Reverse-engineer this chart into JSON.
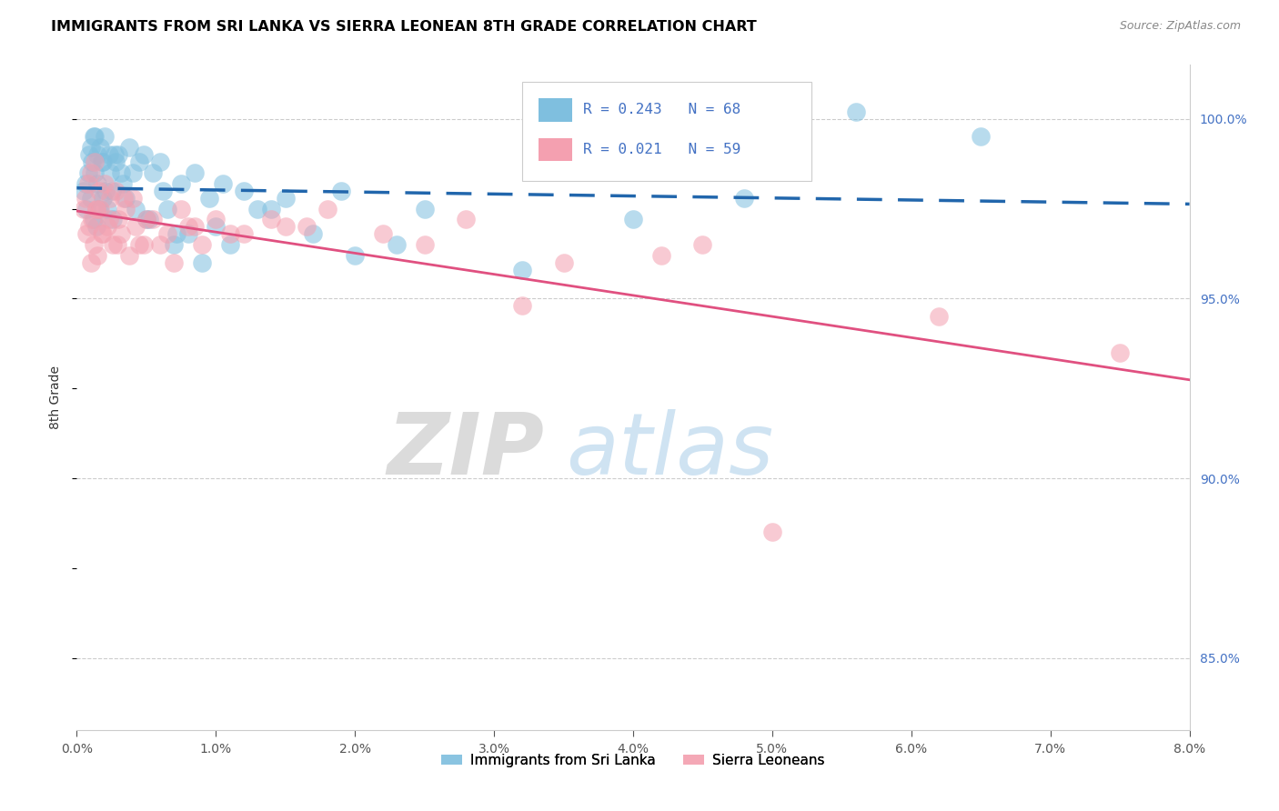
{
  "title": "IMMIGRANTS FROM SRI LANKA VS SIERRA LEONEAN 8TH GRADE CORRELATION CHART",
  "source": "Source: ZipAtlas.com",
  "ylabel": "8th Grade",
  "legend_label_1": "Immigrants from Sri Lanka",
  "legend_label_2": "Sierra Leoneans",
  "r1": 0.243,
  "n1": 68,
  "r2": 0.021,
  "n2": 59,
  "xlim": [
    0.0,
    8.0
  ],
  "ylim": [
    83.0,
    101.5
  ],
  "right_yticks": [
    85.0,
    90.0,
    95.0,
    100.0
  ],
  "color_blue": "#7fbfdf",
  "color_pink": "#f4a0b0",
  "color_blue_line": "#2166ac",
  "color_pink_line": "#e05080",
  "watermark_zip": "ZIP",
  "watermark_atlas": "atlas",
  "sri_lanka_x": [
    0.05,
    0.07,
    0.08,
    0.09,
    0.1,
    0.1,
    0.11,
    0.12,
    0.12,
    0.13,
    0.14,
    0.15,
    0.15,
    0.16,
    0.17,
    0.18,
    0.19,
    0.2,
    0.21,
    0.22,
    0.23,
    0.24,
    0.25,
    0.26,
    0.28,
    0.3,
    0.32,
    0.35,
    0.38,
    0.4,
    0.42,
    0.45,
    0.48,
    0.5,
    0.55,
    0.6,
    0.65,
    0.7,
    0.75,
    0.8,
    0.9,
    1.0,
    1.1,
    1.2,
    1.3,
    1.5,
    1.7,
    2.0,
    2.5,
    3.2,
    4.0,
    4.8,
    5.6,
    6.5,
    0.06,
    0.13,
    0.19,
    0.27,
    0.33,
    0.52,
    0.62,
    0.72,
    0.85,
    0.95,
    1.05,
    1.4,
    1.9,
    2.3
  ],
  "sri_lanka_y": [
    98.0,
    97.5,
    98.5,
    99.0,
    99.2,
    97.8,
    98.8,
    97.2,
    99.5,
    98.5,
    97.0,
    99.0,
    98.2,
    97.5,
    99.2,
    98.8,
    97.8,
    99.5,
    98.0,
    97.5,
    99.0,
    98.5,
    98.0,
    97.2,
    98.8,
    99.0,
    98.5,
    97.8,
    99.2,
    98.5,
    97.5,
    98.8,
    99.0,
    97.2,
    98.5,
    98.8,
    97.5,
    96.5,
    98.2,
    96.8,
    96.0,
    97.0,
    96.5,
    98.0,
    97.5,
    97.8,
    96.8,
    96.2,
    97.5,
    95.8,
    97.2,
    97.8,
    100.2,
    99.5,
    98.2,
    99.5,
    98.8,
    99.0,
    98.2,
    97.2,
    98.0,
    96.8,
    98.5,
    97.8,
    98.2,
    97.5,
    98.0,
    96.5
  ],
  "sierra_leone_x": [
    0.05,
    0.07,
    0.08,
    0.09,
    0.1,
    0.11,
    0.12,
    0.13,
    0.14,
    0.15,
    0.16,
    0.17,
    0.18,
    0.2,
    0.22,
    0.24,
    0.26,
    0.28,
    0.3,
    0.32,
    0.35,
    0.38,
    0.4,
    0.45,
    0.5,
    0.6,
    0.7,
    0.8,
    0.9,
    1.0,
    1.2,
    1.5,
    1.8,
    2.2,
    2.8,
    3.5,
    4.5,
    5.0,
    7.5,
    0.06,
    0.1,
    0.14,
    0.19,
    0.23,
    0.29,
    0.34,
    0.42,
    0.48,
    0.55,
    0.65,
    0.75,
    0.85,
    1.1,
    1.4,
    1.65,
    2.5,
    3.2,
    4.2,
    6.2
  ],
  "sierra_leone_y": [
    97.5,
    96.8,
    98.2,
    97.0,
    98.5,
    97.2,
    96.5,
    98.8,
    97.5,
    96.2,
    98.0,
    97.5,
    96.8,
    98.2,
    97.0,
    97.8,
    96.5,
    98.0,
    97.2,
    96.8,
    97.5,
    96.2,
    97.8,
    96.5,
    97.2,
    96.5,
    96.0,
    97.0,
    96.5,
    97.2,
    96.8,
    97.0,
    97.5,
    96.8,
    97.2,
    96.0,
    96.5,
    88.5,
    93.5,
    97.8,
    96.0,
    97.5,
    96.8,
    97.2,
    96.5,
    97.8,
    97.0,
    96.5,
    97.2,
    96.8,
    97.5,
    97.0,
    96.8,
    97.2,
    97.0,
    96.5,
    94.8,
    96.2,
    94.5
  ]
}
